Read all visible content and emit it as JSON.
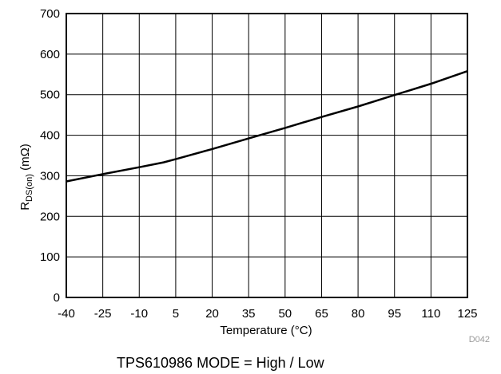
{
  "chart_data": {
    "type": "line",
    "xlabel": "Temperature (°C)",
    "ylabel_main": "R",
    "ylabel_sub": "DS(on)",
    "ylabel_unit": " (mΩ)",
    "xlim": [
      -40,
      125
    ],
    "ylim": [
      0,
      700
    ],
    "xticks": [
      -40,
      -25,
      -10,
      5,
      20,
      35,
      50,
      65,
      80,
      95,
      110,
      125
    ],
    "yticks": [
      0,
      100,
      200,
      300,
      400,
      500,
      600,
      700
    ],
    "grid": true,
    "series": [
      {
        "x": [
          -40,
          -25,
          -10,
          0,
          5,
          20,
          35,
          50,
          65,
          80,
          95,
          110,
          125
        ],
        "y": [
          286,
          304,
          321,
          333,
          341,
          366,
          392,
          418,
          445,
          471,
          499,
          527,
          558
        ]
      }
    ],
    "figure_code": "D042",
    "caption": "TPS610986  MODE = High / Low"
  }
}
